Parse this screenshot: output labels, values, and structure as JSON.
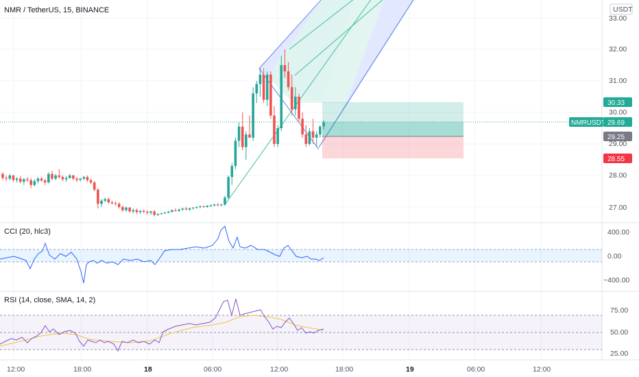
{
  "header": {
    "symbol_title": "NMR / TetherUS, 15, BINANCE",
    "currency_label": "USDT"
  },
  "price_axis": {
    "ticks": [
      "33.00",
      "32.00",
      "31.00",
      "30.00",
      "29.00",
      "28.00",
      "27.00"
    ]
  },
  "price_tags": {
    "target": "30.33",
    "symbol": "NMRUSDT",
    "current": "29.69",
    "entry": "29.25",
    "stop": "28.55"
  },
  "time_axis": {
    "labels": [
      "12:00",
      "18:00",
      "18",
      "06:00",
      "12:00",
      "18:00",
      "19",
      "06:00",
      "12:00"
    ]
  },
  "cci_pane": {
    "label": "CCI (20, hlc3)",
    "ticks": [
      "400.00",
      "0.00",
      "−400.00"
    ]
  },
  "rsi_pane": {
    "label": "RSI (14, close, SMA, 14, 2)",
    "ticks": [
      "75.00",
      "50.00",
      "25.00"
    ]
  },
  "colors": {
    "up": "#26a69a",
    "down": "#ef5350",
    "cci_line": "#2962ff",
    "rsi_line": "#7e57c2",
    "rsi_ma": "#f5c242",
    "target_tag": "#22ab94",
    "stop_tag": "#f23645",
    "entry_tag": "#787b86"
  },
  "chart_data": {
    "type": "candlestick",
    "symbol": "NMRUSDT",
    "interval": "15",
    "exchange": "BINANCE",
    "price_axis_range": [
      26.5,
      33.3
    ],
    "current_price": 29.69,
    "long_position": {
      "entry": 29.25,
      "target": 30.33,
      "stop": 28.55
    },
    "candles": [
      [
        28.05,
        28.1,
        27.85,
        27.92
      ],
      [
        27.92,
        28.0,
        27.82,
        27.9
      ],
      [
        27.9,
        28.05,
        27.85,
        28.0
      ],
      [
        28.0,
        28.02,
        27.8,
        27.86
      ],
      [
        27.86,
        27.95,
        27.78,
        27.9
      ],
      [
        27.9,
        27.98,
        27.75,
        27.8
      ],
      [
        27.8,
        27.92,
        27.7,
        27.88
      ],
      [
        27.88,
        27.95,
        27.8,
        27.85
      ],
      [
        27.85,
        27.92,
        27.6,
        27.7
      ],
      [
        27.7,
        27.88,
        27.65,
        27.82
      ],
      [
        27.82,
        27.95,
        27.75,
        27.9
      ],
      [
        27.9,
        27.95,
        27.8,
        27.84
      ],
      [
        27.84,
        27.9,
        27.7,
        27.78
      ],
      [
        27.78,
        28.1,
        27.75,
        28.05
      ],
      [
        28.05,
        28.15,
        27.85,
        27.9
      ],
      [
        27.9,
        28.05,
        27.85,
        28.0
      ],
      [
        28.0,
        28.2,
        27.9,
        27.95
      ],
      [
        27.95,
        28.0,
        27.82,
        27.88
      ],
      [
        27.88,
        27.98,
        27.8,
        27.92
      ],
      [
        27.92,
        28.05,
        27.9,
        28.0
      ],
      [
        28.0,
        28.02,
        27.85,
        27.9
      ],
      [
        27.9,
        27.95,
        27.8,
        27.86
      ],
      [
        27.86,
        27.92,
        27.82,
        27.9
      ],
      [
        27.9,
        27.98,
        27.85,
        27.95
      ],
      [
        27.95,
        28.0,
        27.8,
        27.85
      ],
      [
        27.85,
        27.9,
        27.72,
        27.78
      ],
      [
        27.78,
        27.82,
        27.5,
        27.55
      ],
      [
        27.55,
        27.6,
        26.95,
        27.1
      ],
      [
        27.1,
        27.25,
        27.0,
        27.2
      ],
      [
        27.2,
        27.3,
        27.15,
        27.25
      ],
      [
        27.25,
        27.3,
        27.1,
        27.15
      ],
      [
        27.15,
        27.2,
        27.08,
        27.12
      ],
      [
        27.12,
        27.18,
        27.05,
        27.1
      ],
      [
        27.1,
        27.15,
        26.95,
        27.0
      ],
      [
        27.0,
        27.05,
        26.85,
        26.9
      ],
      [
        26.9,
        27.02,
        26.85,
        26.98
      ],
      [
        26.98,
        27.0,
        26.82,
        26.86
      ],
      [
        26.86,
        26.95,
        26.8,
        26.9
      ],
      [
        26.9,
        26.95,
        26.78,
        26.84
      ],
      [
        26.84,
        26.9,
        26.78,
        26.88
      ],
      [
        26.88,
        26.92,
        26.8,
        26.85
      ],
      [
        26.85,
        26.9,
        26.75,
        26.82
      ],
      [
        26.82,
        26.88,
        26.75,
        26.86
      ],
      [
        26.86,
        26.9,
        26.7,
        26.75
      ],
      [
        26.75,
        26.8,
        26.72,
        26.78
      ],
      [
        26.78,
        26.82,
        26.75,
        26.8
      ],
      [
        26.8,
        26.85,
        26.78,
        26.82
      ],
      [
        26.82,
        26.88,
        26.8,
        26.85
      ],
      [
        26.85,
        26.92,
        26.82,
        26.9
      ],
      [
        26.9,
        26.95,
        26.85,
        26.88
      ],
      [
        26.88,
        26.95,
        26.85,
        26.92
      ],
      [
        26.92,
        26.98,
        26.88,
        26.95
      ],
      [
        26.95,
        27.0,
        26.9,
        26.92
      ],
      [
        26.92,
        26.98,
        26.88,
        26.96
      ],
      [
        26.96,
        27.0,
        26.92,
        26.98
      ],
      [
        26.98,
        27.02,
        26.94,
        27.0
      ],
      [
        27.0,
        27.05,
        26.96,
        27.02
      ],
      [
        27.02,
        27.05,
        26.98,
        27.0
      ],
      [
        27.0,
        27.06,
        26.98,
        27.04
      ],
      [
        27.04,
        27.08,
        27.0,
        27.05
      ],
      [
        27.05,
        27.1,
        27.02,
        27.08
      ],
      [
        27.08,
        27.12,
        27.02,
        27.06
      ],
      [
        27.06,
        27.1,
        27.02,
        27.08
      ],
      [
        27.08,
        27.35,
        27.05,
        27.3
      ],
      [
        27.3,
        28.0,
        27.25,
        27.95
      ],
      [
        27.95,
        28.4,
        27.7,
        28.3
      ],
      [
        28.3,
        29.2,
        28.2,
        29.1
      ],
      [
        29.1,
        29.7,
        28.9,
        29.55
      ],
      [
        29.55,
        30.0,
        28.8,
        28.9
      ],
      [
        28.9,
        29.4,
        28.5,
        29.3
      ],
      [
        29.3,
        29.9,
        29.2,
        29.2
      ],
      [
        29.2,
        30.8,
        29.1,
        30.6
      ],
      [
        30.6,
        31.0,
        30.3,
        30.9
      ],
      [
        30.9,
        31.4,
        30.5,
        31.2
      ],
      [
        31.2,
        31.4,
        30.3,
        30.4
      ],
      [
        30.4,
        31.3,
        30.2,
        31.2
      ],
      [
        31.2,
        31.3,
        29.8,
        29.9
      ],
      [
        29.9,
        30.2,
        28.9,
        29.0
      ],
      [
        29.0,
        29.6,
        28.9,
        29.5
      ],
      [
        29.5,
        31.8,
        29.4,
        31.5
      ],
      [
        31.5,
        32.0,
        31.1,
        31.3
      ],
      [
        31.3,
        31.6,
        30.7,
        30.8
      ],
      [
        30.8,
        31.2,
        29.9,
        30.1
      ],
      [
        30.1,
        30.8,
        29.9,
        30.5
      ],
      [
        30.5,
        30.6,
        29.7,
        29.8
      ],
      [
        29.8,
        30.0,
        29.2,
        29.3
      ],
      [
        29.3,
        29.6,
        28.9,
        29.0
      ],
      [
        29.0,
        29.5,
        28.95,
        29.4
      ],
      [
        29.4,
        29.8,
        29.0,
        29.2
      ],
      [
        29.2,
        29.4,
        28.9,
        29.3
      ],
      [
        29.3,
        29.6,
        29.2,
        29.55
      ],
      [
        29.55,
        29.75,
        29.45,
        29.69
      ]
    ]
  }
}
